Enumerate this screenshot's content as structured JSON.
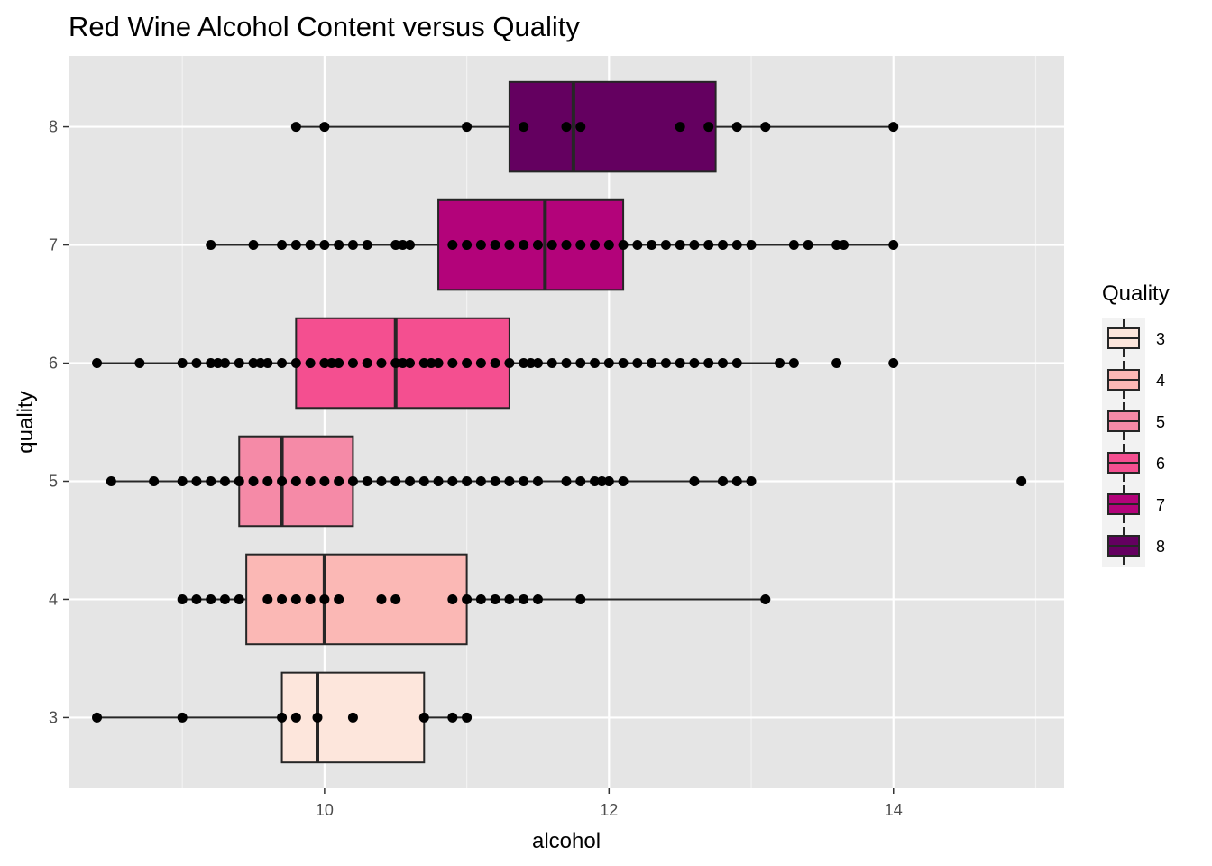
{
  "chart_data": {
    "type": "boxplot",
    "title": "Red Wine Alcohol Content versus Quality",
    "xlabel": "alcohol",
    "ylabel": "quality",
    "xlim": [
      8.2,
      15.2
    ],
    "x_ticks": [
      10,
      12,
      14
    ],
    "grid": true,
    "legend": {
      "title": "Quality",
      "placement": "right"
    },
    "series": [
      {
        "name": "3",
        "color": "#fde6dc",
        "min": 8.4,
        "q1": 9.7,
        "median": 9.95,
        "q3": 10.7,
        "max": 11.0,
        "points": [
          8.4,
          9.0,
          9.7,
          9.8,
          9.95,
          10.2,
          10.7,
          10.9,
          11.0
        ]
      },
      {
        "name": "4",
        "color": "#fbb8b5",
        "min": 9.0,
        "q1": 9.45,
        "median": 10.0,
        "q3": 11.0,
        "max": 13.1,
        "points": [
          9.0,
          9.1,
          9.2,
          9.3,
          9.4,
          9.6,
          9.7,
          9.8,
          9.9,
          10.0,
          10.1,
          10.4,
          10.5,
          10.9,
          11.0,
          11.1,
          11.2,
          11.3,
          11.4,
          11.5,
          11.8,
          13.1
        ]
      },
      {
        "name": "5",
        "color": "#f58aa7",
        "min": 8.5,
        "q1": 9.4,
        "median": 9.7,
        "q3": 10.2,
        "max": 13.0,
        "points": [
          8.5,
          8.8,
          9.0,
          9.1,
          9.2,
          9.3,
          9.4,
          9.5,
          9.6,
          9.7,
          9.8,
          9.9,
          10.0,
          10.1,
          10.2,
          10.3,
          10.4,
          10.5,
          10.6,
          10.7,
          10.8,
          10.9,
          11.0,
          11.1,
          11.2,
          11.3,
          11.4,
          11.5,
          11.7,
          11.8,
          11.9,
          11.95,
          12.0,
          12.1,
          12.6,
          12.8,
          12.9,
          13.0,
          14.9
        ]
      },
      {
        "name": "6",
        "color": "#f44f90",
        "min": 8.4,
        "q1": 9.8,
        "median": 10.5,
        "q3": 11.3,
        "max": 13.3,
        "points": [
          8.4,
          8.7,
          9.0,
          9.1,
          9.2,
          9.25,
          9.3,
          9.4,
          9.5,
          9.55,
          9.6,
          9.7,
          9.8,
          9.9,
          10.0,
          10.05,
          10.1,
          10.2,
          10.3,
          10.4,
          10.5,
          10.55,
          10.6,
          10.7,
          10.75,
          10.8,
          10.9,
          11.0,
          11.1,
          11.2,
          11.3,
          11.4,
          11.45,
          11.5,
          11.6,
          11.7,
          11.8,
          11.9,
          12.0,
          12.1,
          12.2,
          12.3,
          12.4,
          12.5,
          12.6,
          12.7,
          12.8,
          12.9,
          13.2,
          13.3,
          13.6,
          14.0
        ]
      },
      {
        "name": "7",
        "color": "#b3037a",
        "min": 9.2,
        "q1": 10.8,
        "median": 11.55,
        "q3": 12.1,
        "max": 14.0,
        "points": [
          9.2,
          9.5,
          9.7,
          9.8,
          9.9,
          10.0,
          10.1,
          10.2,
          10.3,
          10.5,
          10.55,
          10.6,
          10.9,
          11.0,
          11.1,
          11.2,
          11.3,
          11.4,
          11.5,
          11.6,
          11.7,
          11.8,
          11.9,
          12.0,
          12.1,
          12.2,
          12.3,
          12.4,
          12.5,
          12.6,
          12.7,
          12.8,
          12.9,
          13.0,
          13.3,
          13.4,
          13.6,
          13.65,
          14.0
        ]
      },
      {
        "name": "8",
        "color": "#640060",
        "min": 9.8,
        "q1": 11.3,
        "median": 11.75,
        "q3": 12.75,
        "max": 14.0,
        "points": [
          9.8,
          10.0,
          11.0,
          11.4,
          11.7,
          11.8,
          12.5,
          12.7,
          12.9,
          13.1,
          14.0
        ]
      }
    ]
  }
}
